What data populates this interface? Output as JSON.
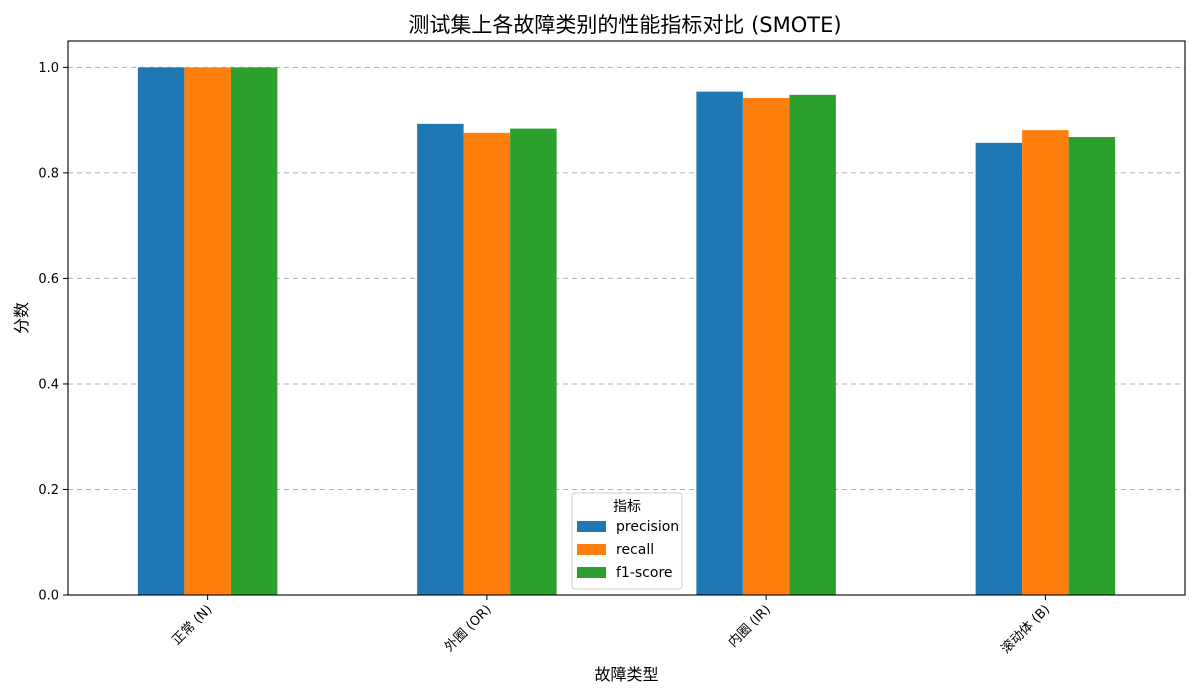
{
  "chart_data": {
    "type": "bar",
    "title": "测试集上各故障类别的性能指标对比 (SMOTE)",
    "xlabel": "故障类型",
    "ylabel": "分数",
    "categories": [
      "正常 (N)",
      "外圈 (OR)",
      "内圈 (IR)",
      "滚动体 (B)"
    ],
    "series": [
      {
        "name": "precision",
        "color": "#1f77b4",
        "values": [
          1.0,
          0.893,
          0.954,
          0.857
        ]
      },
      {
        "name": "recall",
        "color": "#ff7f0e",
        "values": [
          1.0,
          0.876,
          0.942,
          0.881
        ]
      },
      {
        "name": "f1-score",
        "color": "#2ca02c",
        "values": [
          1.0,
          0.884,
          0.948,
          0.868
        ]
      }
    ],
    "ylim": [
      0,
      1.05
    ],
    "yticks": [
      "0.0",
      "0.2",
      "0.4",
      "0.6",
      "0.8",
      "1.0"
    ],
    "grid": "y-dashed",
    "legend": {
      "title": "指标",
      "placement": "bottom-center"
    },
    "x_tick_rotation": 45
  }
}
